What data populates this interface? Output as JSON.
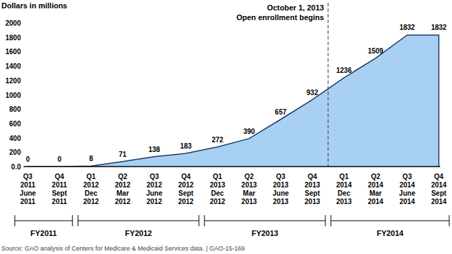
{
  "chart_data": {
    "type": "area",
    "y_label": "Dollars in millions",
    "categories": [
      "Q3 2011 June 2011",
      "Q4 2011 Sept 2011",
      "Q1 2012 Dec 2012",
      "Q2 2012 Mar 2012",
      "Q3 2012 June 2012",
      "Q4 2012 Sept 2012",
      "Q1 2013 Dec 2012",
      "Q2 2013 Mar 2013",
      "Q3 2013 June 2013",
      "Q4 2013 Sept 2013",
      "Q1 2014 Dec 2013",
      "Q2 2014 Mar 2014",
      "Q3 2014 June 2014",
      "Q4 2014 Sept 2014"
    ],
    "values": [
      0,
      0,
      8,
      71,
      138,
      183,
      272,
      390,
      657,
      932,
      1236,
      1509,
      1832,
      1832
    ],
    "color": "#a8d0f2",
    "data_labels": true,
    "grid": false,
    "ylim": [
      0,
      2000
    ],
    "yticks": [
      {
        "value": 0,
        "label": "0.0"
      },
      200,
      400,
      600,
      800,
      1000,
      1200,
      1400,
      1600,
      1800,
      2000
    ],
    "annotations": [
      {
        "x": 9.5,
        "lines": [
          "October 1, 2013",
          "Open enrollment begins"
        ]
      }
    ],
    "groups": [
      {
        "label": "FY2011",
        "start": 0,
        "end": 1
      },
      {
        "label": "FY2012",
        "start": 2,
        "end": 5
      },
      {
        "label": "FY2013",
        "start": 6,
        "end": 9
      },
      {
        "label": "FY2014",
        "start": 10,
        "end": 13
      }
    ],
    "source": "Source: GAO analysis of Centers for Medicare & Medicaid Services data.  |  GAO-15-169"
  }
}
